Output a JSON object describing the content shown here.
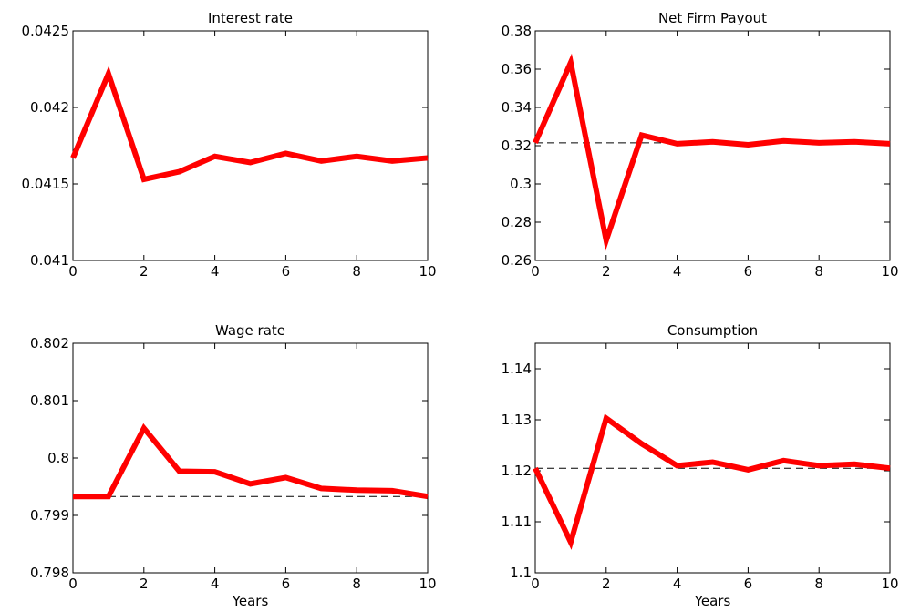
{
  "chart_data": [
    {
      "type": "line",
      "title": "Interest rate",
      "xlabel": "",
      "ylabel": "",
      "xlim": [
        0,
        10
      ],
      "ylim": [
        0.041,
        0.0425
      ],
      "xticks": [
        0,
        2,
        4,
        6,
        8,
        10
      ],
      "xtick_labels": [
        "0",
        "2",
        "4",
        "6",
        "8",
        "10"
      ],
      "yticks": [
        0.041,
        0.0415,
        0.042,
        0.0425
      ],
      "ytick_labels": [
        "0.041",
        "0.0415",
        "0.042",
        "0.0425"
      ],
      "grid": false,
      "series": [
        {
          "x": [
            0,
            1,
            2,
            3,
            4,
            5,
            6,
            7,
            8,
            9,
            10
          ],
          "values": [
            0.04167,
            0.04222,
            0.04153,
            0.04158,
            0.04168,
            0.04164,
            0.0417,
            0.04165,
            0.04168,
            0.04165,
            0.04167
          ],
          "color": "#ff0000",
          "style": "solid"
        }
      ],
      "reference_line": {
        "value": 0.04167,
        "color": "#000000",
        "style": "dashed"
      }
    },
    {
      "type": "line",
      "title": "Net Firm Payout",
      "xlabel": "",
      "ylabel": "",
      "xlim": [
        0,
        10
      ],
      "ylim": [
        0.26,
        0.38
      ],
      "xticks": [
        0,
        2,
        4,
        6,
        8,
        10
      ],
      "xtick_labels": [
        "0",
        "2",
        "4",
        "6",
        "8",
        "10"
      ],
      "yticks": [
        0.26,
        0.28,
        0.3,
        0.32,
        0.34,
        0.36,
        0.38
      ],
      "ytick_labels": [
        "0.26",
        "0.28",
        "0.3",
        "0.32",
        "0.34",
        "0.36",
        "0.38"
      ],
      "grid": false,
      "series": [
        {
          "x": [
            0,
            1,
            2,
            3,
            4,
            5,
            6,
            7,
            8,
            9,
            10
          ],
          "values": [
            0.3215,
            0.3635,
            0.2705,
            0.3255,
            0.321,
            0.322,
            0.3205,
            0.3225,
            0.3215,
            0.322,
            0.321
          ],
          "color": "#ff0000",
          "style": "solid"
        }
      ],
      "reference_line": {
        "value": 0.3215,
        "color": "#000000",
        "style": "dashed"
      }
    },
    {
      "type": "line",
      "title": "Wage rate",
      "xlabel": "Years",
      "ylabel": "",
      "xlim": [
        0,
        10
      ],
      "ylim": [
        0.798,
        0.802
      ],
      "xticks": [
        0,
        2,
        4,
        6,
        8,
        10
      ],
      "xtick_labels": [
        "0",
        "2",
        "4",
        "6",
        "8",
        "10"
      ],
      "yticks": [
        0.798,
        0.799,
        0.8,
        0.801,
        0.802
      ],
      "ytick_labels": [
        "0.798",
        "0.799",
        "0.8",
        "0.801",
        "0.802"
      ],
      "grid": false,
      "series": [
        {
          "x": [
            0,
            1,
            2,
            3,
            4,
            5,
            6,
            7,
            8,
            9,
            10
          ],
          "values": [
            0.79933,
            0.79933,
            0.80052,
            0.79977,
            0.79976,
            0.79955,
            0.79966,
            0.79947,
            0.79944,
            0.79943,
            0.79933
          ],
          "color": "#ff0000",
          "style": "solid"
        }
      ],
      "reference_line": {
        "value": 0.79933,
        "color": "#000000",
        "style": "dashed"
      }
    },
    {
      "type": "line",
      "title": "Consumption",
      "xlabel": "Years",
      "ylabel": "",
      "xlim": [
        0,
        10
      ],
      "ylim": [
        1.1,
        1.145
      ],
      "xticks": [
        0,
        2,
        4,
        6,
        8,
        10
      ],
      "xtick_labels": [
        "0",
        "2",
        "4",
        "6",
        "8",
        "10"
      ],
      "yticks": [
        1.1,
        1.11,
        1.12,
        1.13,
        1.14
      ],
      "ytick_labels": [
        "1.1",
        "1.11",
        "1.12",
        "1.13",
        "1.14"
      ],
      "grid": false,
      "series": [
        {
          "x": [
            0,
            1,
            2,
            3,
            4,
            5,
            6,
            7,
            8,
            9,
            10
          ],
          "values": [
            1.1205,
            1.106,
            1.1303,
            1.1253,
            1.121,
            1.1217,
            1.1202,
            1.122,
            1.121,
            1.1213,
            1.1205
          ],
          "color": "#ff0000",
          "style": "solid"
        }
      ],
      "reference_line": {
        "value": 1.1205,
        "color": "#000000",
        "style": "dashed"
      }
    }
  ]
}
